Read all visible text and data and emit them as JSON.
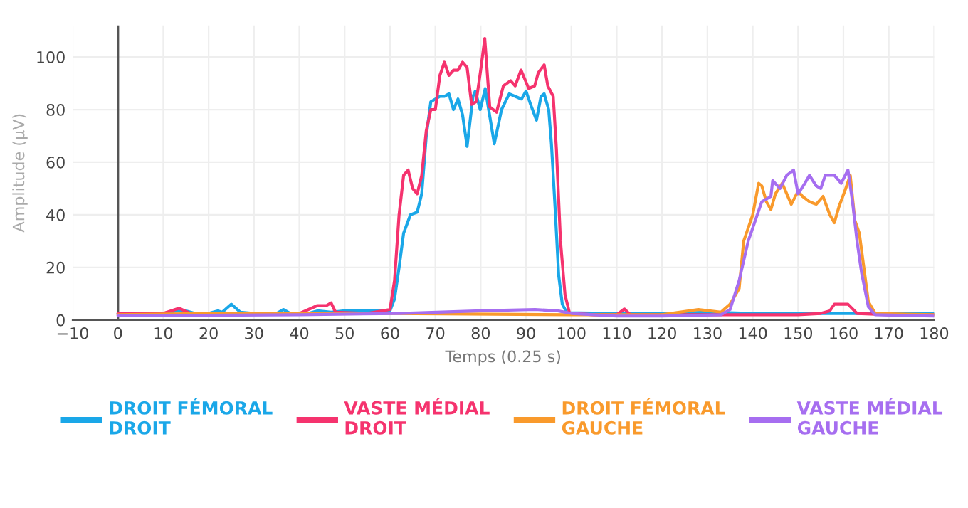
{
  "chart_data": {
    "type": "line",
    "xlabel": "Temps (0.25 s)",
    "ylabel": "Amplitude (µV)",
    "xlim": [
      -10,
      180
    ],
    "xticks": [
      {
        "value": -10,
        "label": "−10"
      },
      0,
      10,
      20,
      30,
      40,
      50,
      60,
      70,
      80,
      90,
      100,
      110,
      120,
      130,
      140,
      150,
      160,
      170,
      180
    ],
    "ylim": [
      0,
      112
    ],
    "yticks": [
      0,
      20,
      40,
      60,
      80,
      100
    ],
    "grid": true,
    "legend": "bottom",
    "ref_lines": [
      {
        "axis": "x",
        "value": 0,
        "color": "#555555"
      }
    ],
    "series": [
      {
        "name": "DROIT FÉMORAL DROIT",
        "color": "#1aa7e8",
        "x": [
          0,
          10,
          13,
          15,
          17,
          20,
          22,
          23,
          25,
          27,
          30,
          35,
          36.5,
          38,
          42,
          44,
          47,
          50,
          55,
          59,
          60,
          61,
          62,
          63,
          64.5,
          66,
          67,
          68,
          69,
          70,
          71,
          72,
          73,
          74,
          75,
          76,
          77,
          78.3,
          78.8,
          79.9,
          81,
          83,
          84.6,
          86.3,
          89,
          90,
          91,
          92.3,
          93.3,
          94,
          95,
          95.6,
          96.4,
          97.2,
          98,
          99,
          110,
          120,
          130,
          140,
          150,
          160,
          170,
          180
        ],
        "values": [
          2.5,
          2.5,
          3.5,
          3.5,
          2.5,
          2.5,
          3.5,
          3,
          6,
          3,
          2.5,
          2.5,
          4,
          2.5,
          2.5,
          3.5,
          3,
          3.5,
          3.5,
          3.5,
          3.5,
          8,
          20,
          33,
          40,
          41,
          48,
          70,
          83,
          84,
          85,
          85,
          86,
          80,
          84,
          78,
          66,
          85,
          87,
          80,
          88,
          67,
          80,
          86,
          84,
          87,
          82,
          76,
          85,
          86,
          80,
          67,
          43,
          17,
          6,
          2.8,
          2.5,
          2.5,
          3,
          2.5,
          2.5,
          2.5,
          2.5,
          2.5
        ]
      },
      {
        "name": "VASTE MÉDIAL DROIT",
        "color": "#f5336e",
        "x": [
          0,
          10,
          13.5,
          16,
          20,
          40,
          44,
          46,
          47,
          48,
          55,
          60,
          61,
          62,
          63,
          64,
          65,
          66,
          67,
          68,
          69,
          70,
          71,
          72,
          73,
          74,
          75,
          76,
          77,
          78,
          79,
          80,
          80.9,
          82,
          83.5,
          85,
          86.6,
          87.6,
          88.9,
          90.6,
          91.9,
          92.7,
          94,
          94.8,
          96,
          96.7,
          97.6,
          98.6,
          99.6,
          105,
          110,
          111.7,
          113,
          130,
          150,
          155,
          157,
          158,
          161,
          163,
          170,
          180
        ],
        "values": [
          2.5,
          2.5,
          4.5,
          2.5,
          2.5,
          2.5,
          5.5,
          5.5,
          6.5,
          3,
          2.5,
          4,
          15,
          40,
          55,
          57,
          50,
          48,
          55,
          72,
          80,
          80,
          93,
          98,
          93,
          95,
          95,
          98,
          96,
          82,
          83,
          95,
          107,
          81,
          79,
          89,
          91,
          89,
          95,
          88,
          89,
          94,
          97,
          89,
          85,
          65,
          30,
          9.6,
          2.6,
          2,
          2,
          4.2,
          2,
          2,
          2,
          2.5,
          3.5,
          6,
          6,
          2.5,
          2,
          2
        ]
      },
      {
        "name": "DROIT FÉMORAL GAUCHE",
        "color": "#f99a2c",
        "x": [
          0,
          20,
          60,
          100,
          120,
          128,
          133,
          135,
          137,
          138,
          140,
          141.3,
          142,
          143,
          144,
          145,
          146.5,
          147.5,
          148.5,
          150,
          151,
          152.5,
          154,
          155.5,
          157,
          158,
          159,
          160.5,
          161.5,
          162.5,
          163.5,
          164.5,
          165.5,
          167,
          180
        ],
        "values": [
          2,
          2.5,
          2.5,
          2,
          2,
          4,
          3,
          6,
          12,
          30,
          40,
          52,
          51,
          45,
          42,
          48,
          52,
          48,
          44,
          49,
          47,
          45,
          44,
          47,
          40,
          37,
          43,
          50,
          55,
          38,
          33,
          20,
          7,
          2.5,
          2
        ]
      },
      {
        "name": "VASTE MÉDIAL GAUCHE",
        "color": "#a66ef0",
        "x": [
          0,
          10,
          40,
          62,
          80,
          92,
          97,
          100,
          110,
          120,
          133,
          135,
          137,
          139,
          141,
          142,
          144,
          144.4,
          146,
          147.5,
          149,
          150,
          151.5,
          152.5,
          154,
          155,
          156,
          158,
          159.5,
          161,
          162,
          163,
          164,
          165.5,
          167,
          180
        ],
        "values": [
          1.7,
          1.7,
          2,
          2.5,
          3.5,
          4,
          3.5,
          2.5,
          1.5,
          1.5,
          2,
          4,
          15,
          30,
          40,
          45,
          47,
          53,
          50,
          55,
          57,
          48,
          52,
          55,
          51,
          50,
          55,
          55,
          52,
          57,
          45,
          30,
          18,
          5,
          2,
          1.5
        ]
      }
    ]
  }
}
